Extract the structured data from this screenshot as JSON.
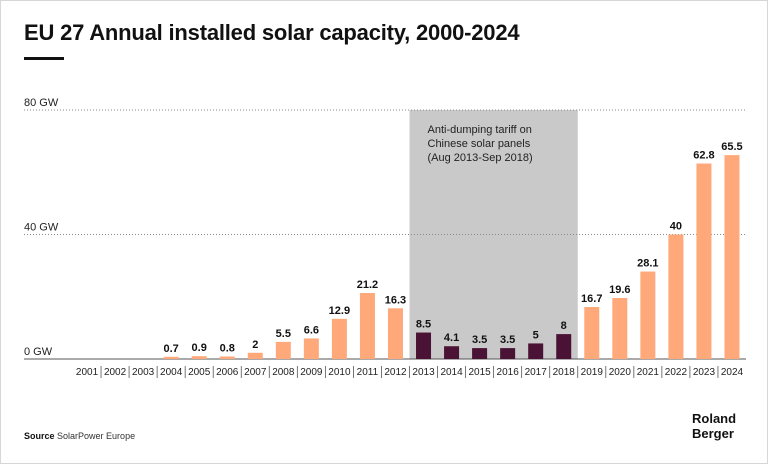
{
  "title": "EU 27 Annual installed solar capacity, 2000-2024",
  "source": {
    "label": "Source",
    "text": "SolarPower Europe"
  },
  "logo": {
    "line1": "Roland",
    "line2": "Berger"
  },
  "colors": {
    "normal_bar": "#FFA97A",
    "tariff_bar": "#4A1234",
    "shade": "#C9C9C9",
    "grid": "#888888"
  },
  "chart_data": {
    "type": "bar",
    "categories": [
      "2001",
      "2002",
      "2003",
      "2004",
      "2005",
      "2006",
      "2007",
      "2008",
      "2009",
      "2010",
      "2011",
      "2012",
      "2013",
      "2014",
      "2015",
      "2016",
      "2017",
      "2018",
      "2019",
      "2020",
      "2021",
      "2022",
      "2023",
      "2024"
    ],
    "values": [
      0,
      0,
      0,
      0.7,
      0.9,
      0.8,
      2,
      5.5,
      6.6,
      12.9,
      21.2,
      16.3,
      8.5,
      4.1,
      3.5,
      3.5,
      5,
      8,
      16.7,
      19.6,
      28.1,
      40,
      62.8,
      65.5
    ],
    "value_labels": [
      "",
      "",
      "",
      "0.7",
      "0.9",
      "0.8",
      "2",
      "5.5",
      "6.6",
      "12.9",
      "21.2",
      "16.3",
      "8.5",
      "4.1",
      "3.5",
      "3.5",
      "5",
      "8",
      "16.7",
      "19.6",
      "28.1",
      "40",
      "62.8",
      "65.5"
    ],
    "ylim": [
      0,
      80
    ],
    "yticks": [
      0,
      40,
      80
    ],
    "ytick_labels": [
      "0 GW",
      "40 GW",
      "80 GW"
    ],
    "highlight_range": [
      "2013",
      "2018"
    ],
    "annotation": {
      "lines": [
        "Anti-dumping tariff on",
        "Chinese solar panels",
        "(Aug 2013-Sep 2018)"
      ]
    },
    "grid": true
  }
}
